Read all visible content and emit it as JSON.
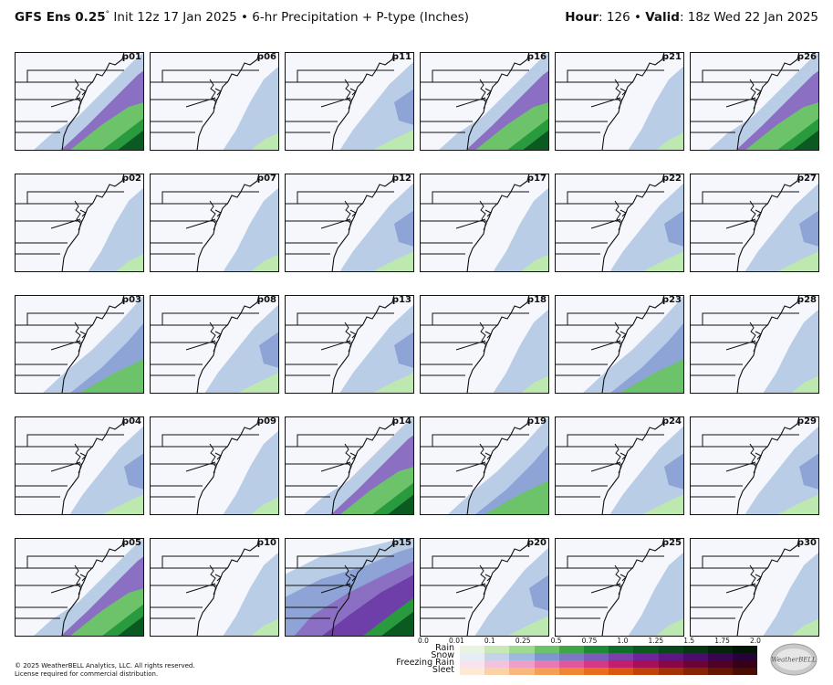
{
  "header": {
    "model": "GFS Ens 0.25",
    "degree": "°",
    "init": " Init 12z 17 Jan 2025 • 6-hr Precipitation + P-type (Inches)",
    "hour_label": "Hour",
    "hour_value": ": 126 • ",
    "valid_label": "Valid",
    "valid_value": ": 18z Wed 22 Jan 2025"
  },
  "panels": [
    {
      "id": "p01",
      "precip": "heavy-se"
    },
    {
      "id": "p06",
      "precip": "light-coast"
    },
    {
      "id": "p11",
      "precip": "light-mid"
    },
    {
      "id": "p16",
      "precip": "heavy-se"
    },
    {
      "id": "p21",
      "precip": "light-coast"
    },
    {
      "id": "p26",
      "precip": "heavy-se"
    },
    {
      "id": "p02",
      "precip": "light-coast"
    },
    {
      "id": "p07",
      "precip": "light-coast"
    },
    {
      "id": "p12",
      "precip": "light-mid"
    },
    {
      "id": "p17",
      "precip": "light-coast"
    },
    {
      "id": "p22",
      "precip": "light-mid"
    },
    {
      "id": "p27",
      "precip": "light-mid"
    },
    {
      "id": "p03",
      "precip": "mod-se"
    },
    {
      "id": "p08",
      "precip": "light-mid"
    },
    {
      "id": "p13",
      "precip": "light-mid"
    },
    {
      "id": "p18",
      "precip": "light-coast"
    },
    {
      "id": "p23",
      "precip": "mod-se"
    },
    {
      "id": "p28",
      "precip": "light-coast"
    },
    {
      "id": "p04",
      "precip": "light-mid"
    },
    {
      "id": "p09",
      "precip": "light-coast"
    },
    {
      "id": "p14",
      "precip": "heavy-se"
    },
    {
      "id": "p19",
      "precip": "mod-se"
    },
    {
      "id": "p24",
      "precip": "light-mid"
    },
    {
      "id": "p29",
      "precip": "light-mid"
    },
    {
      "id": "p05",
      "precip": "heavy-se"
    },
    {
      "id": "p10",
      "precip": "light-coast"
    },
    {
      "id": "p15",
      "precip": "extreme"
    },
    {
      "id": "p20",
      "precip": "light-mid"
    },
    {
      "id": "p25",
      "precip": "light-coast"
    },
    {
      "id": "p30",
      "precip": "light-coast"
    }
  ],
  "legend": {
    "ticks": [
      "0.0",
      "0.01",
      "0.1",
      "0.25",
      "0.5",
      "0.75",
      "1.0",
      "1.25",
      "1.5",
      "1.75",
      "2.0"
    ],
    "types": [
      {
        "name": "Rain",
        "colors": [
          "#e8f3e0",
          "#c8e8b8",
          "#9edb8e",
          "#6cc36a",
          "#3fa648",
          "#1f8a35",
          "#0e6f2b",
          "#0a5a22",
          "#084719",
          "#063612",
          "#04250b",
          "#021606"
        ]
      },
      {
        "name": "Snow",
        "colors": [
          "#e6edf7",
          "#c3d3ea",
          "#9fb8de",
          "#8096cf",
          "#7a79c2",
          "#7a5db7",
          "#7c3fa8",
          "#6f2597",
          "#5e1682",
          "#4b0d6b",
          "#380650",
          "#260238"
        ]
      },
      {
        "name": "Freezing Rain",
        "colors": [
          "#f9e4ee",
          "#f3c3dc",
          "#ee9fc8",
          "#e879b2",
          "#e0579d",
          "#d43886",
          "#c21d6e",
          "#a80f59",
          "#8a0747",
          "#6c0336",
          "#500126",
          "#360017"
        ]
      },
      {
        "name": "Sleet",
        "colors": [
          "#fde9d4",
          "#fbd1a8",
          "#f8b77c",
          "#f59e55",
          "#f08535",
          "#e86d1d",
          "#d9570f",
          "#c24308",
          "#a53204",
          "#862302",
          "#671701",
          "#4a0c00"
        ]
      }
    ]
  },
  "footer": {
    "line1": "© 2025 WeatherBELL Analytics, LLC. All rights reserved.",
    "line2": "License required for commercial distribution."
  },
  "logo_text": "WeatherBELL"
}
